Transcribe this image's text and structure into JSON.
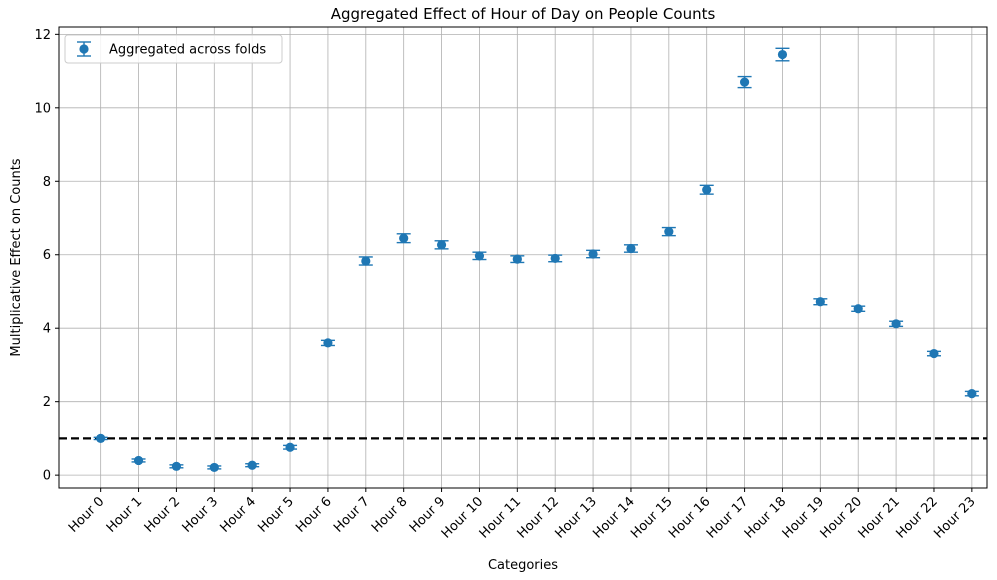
{
  "chart_data": {
    "type": "scatter",
    "title": "Aggregated Effect of Hour of Day on People Counts",
    "xlabel": "Categories",
    "ylabel": "Multiplicative Effect on Counts",
    "ylim": [
      -0.35,
      12.2
    ],
    "yticks": [
      0,
      2,
      4,
      6,
      8,
      10,
      12
    ],
    "grid": true,
    "legend_position": "top-left",
    "marker_color": "#1f77b4",
    "reference_line": {
      "y": 1,
      "style": "dashed",
      "color": "#000000"
    },
    "categories": [
      "Hour 0",
      "Hour 1",
      "Hour 2",
      "Hour 3",
      "Hour 4",
      "Hour 5",
      "Hour 6",
      "Hour 7",
      "Hour 8",
      "Hour 9",
      "Hour 10",
      "Hour 11",
      "Hour 12",
      "Hour 13",
      "Hour 14",
      "Hour 15",
      "Hour 16",
      "Hour 17",
      "Hour 18",
      "Hour 19",
      "Hour 20",
      "Hour 21",
      "Hour 22",
      "Hour 23"
    ],
    "series": [
      {
        "name": "Aggregated across folds",
        "values": [
          1.0,
          0.4,
          0.24,
          0.21,
          0.27,
          0.76,
          3.6,
          5.83,
          6.45,
          6.27,
          5.97,
          5.88,
          5.9,
          6.02,
          6.17,
          6.63,
          7.77,
          10.7,
          11.45,
          4.72,
          4.53,
          4.12,
          3.31,
          2.22
        ],
        "errors": [
          0.03,
          0.04,
          0.04,
          0.04,
          0.04,
          0.05,
          0.07,
          0.11,
          0.12,
          0.11,
          0.1,
          0.09,
          0.09,
          0.1,
          0.1,
          0.11,
          0.12,
          0.15,
          0.17,
          0.08,
          0.07,
          0.07,
          0.06,
          0.06
        ]
      }
    ]
  }
}
